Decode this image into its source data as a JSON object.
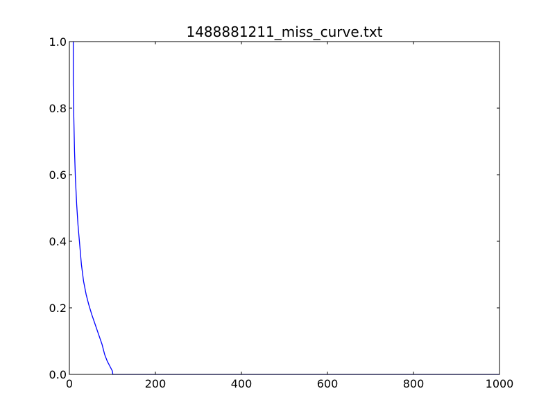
{
  "chart_data": {
    "type": "line",
    "title": "1488881211_miss_curve.txt",
    "xlabel": "",
    "ylabel": "",
    "xlim": [
      0,
      1000
    ],
    "ylim": [
      0,
      1.0
    ],
    "xticks": [
      "0",
      "200",
      "400",
      "600",
      "800",
      "1000"
    ],
    "yticks": [
      "0.0",
      "0.2",
      "0.4",
      "0.6",
      "0.8",
      "1.0"
    ],
    "grid": false,
    "line_color": "#0000ff",
    "series": [
      {
        "x": [
          9,
          9,
          10,
          11,
          12,
          14,
          17,
          20,
          24,
          28,
          33,
          39,
          45,
          52,
          60,
          68,
          76,
          82,
          88,
          94,
          100,
          101,
          120,
          200,
          400,
          600,
          800,
          1000
        ],
        "y": [
          1.0,
          0.87,
          0.79,
          0.73,
          0.67,
          0.59,
          0.51,
          0.45,
          0.39,
          0.33,
          0.28,
          0.24,
          0.21,
          0.18,
          0.15,
          0.12,
          0.09,
          0.06,
          0.04,
          0.025,
          0.01,
          0.0,
          0.0,
          0.0,
          0.0,
          0.0,
          0.0,
          0.0
        ]
      }
    ]
  }
}
